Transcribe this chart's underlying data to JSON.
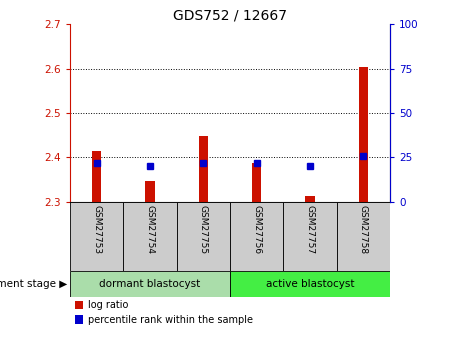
{
  "title": "GDS752 / 12667",
  "samples": [
    "GSM27753",
    "GSM27754",
    "GSM27755",
    "GSM27756",
    "GSM27757",
    "GSM27758"
  ],
  "log_ratio": [
    2.415,
    2.348,
    2.448,
    2.388,
    2.313,
    2.603
  ],
  "percentile_rank": [
    22,
    20,
    22,
    22,
    20,
    26
  ],
  "ylim_left": [
    2.3,
    2.7
  ],
  "ylim_right": [
    0,
    100
  ],
  "yticks_left": [
    2.3,
    2.4,
    2.5,
    2.6,
    2.7
  ],
  "yticks_right": [
    0,
    25,
    50,
    75,
    100
  ],
  "bar_color": "#cc1100",
  "point_color": "#0000cc",
  "bar_bottom": 2.3,
  "grid_color": "black",
  "groups": [
    {
      "label": "dormant blastocyst",
      "start": 0,
      "end": 3,
      "color": "#aaddaa"
    },
    {
      "label": "active blastocyst",
      "start": 3,
      "end": 6,
      "color": "#44ee44"
    }
  ],
  "group_label": "development stage",
  "tick_bg_color": "#cccccc",
  "legend_labels": [
    "log ratio",
    "percentile rank within the sample"
  ],
  "legend_colors": [
    "#cc1100",
    "#0000cc"
  ],
  "title_fontsize": 10,
  "tick_fontsize": 7.5,
  "bar_width": 0.18
}
